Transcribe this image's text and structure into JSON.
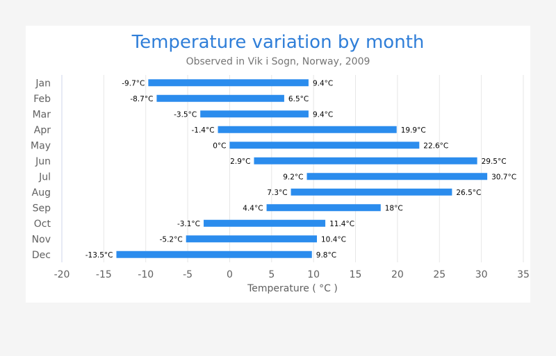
{
  "chart_data": {
    "type": "bar",
    "orientation": "horizontal",
    "title": "Temperature variation by month",
    "subtitle": "Observed in Vik i Sogn, Norway, 2009",
    "xlabel": "Temperature ( °C )",
    "categories": [
      "Jan",
      "Feb",
      "Mar",
      "Apr",
      "May",
      "Jun",
      "Jul",
      "Aug",
      "Sep",
      "Oct",
      "Nov",
      "Dec"
    ],
    "ranges": [
      [
        -9.7,
        9.4
      ],
      [
        -8.7,
        6.5
      ],
      [
        -3.5,
        9.4
      ],
      [
        -1.4,
        19.9
      ],
      [
        0,
        22.6
      ],
      [
        2.9,
        29.5
      ],
      [
        9.2,
        30.7
      ],
      [
        7.3,
        26.5
      ],
      [
        4.4,
        18
      ],
      [
        -3.1,
        11.4
      ],
      [
        -5.2,
        10.4
      ],
      [
        -13.5,
        9.8
      ]
    ],
    "low_labels": [
      "-9.7°C",
      "-8.7°C",
      "-3.5°C",
      "-1.4°C",
      "0°C",
      "2.9°C",
      "9.2°C",
      "7.3°C",
      "4.4°C",
      "-3.1°C",
      "-5.2°C",
      "-13.5°C"
    ],
    "high_labels": [
      "9.4°C",
      "6.5°C",
      "9.4°C",
      "19.9°C",
      "22.6°C",
      "29.5°C",
      "30.7°C",
      "26.5°C",
      "18°C",
      "11.4°C",
      "10.4°C",
      "9.8°C"
    ],
    "xlim": [
      -20,
      35
    ],
    "xticks": [
      "-20",
      "-15",
      "-10",
      "-5",
      "0",
      "5",
      "10",
      "15",
      "20",
      "25",
      "30",
      "35"
    ],
    "grid": true,
    "bar_color": "#2b8ced"
  }
}
